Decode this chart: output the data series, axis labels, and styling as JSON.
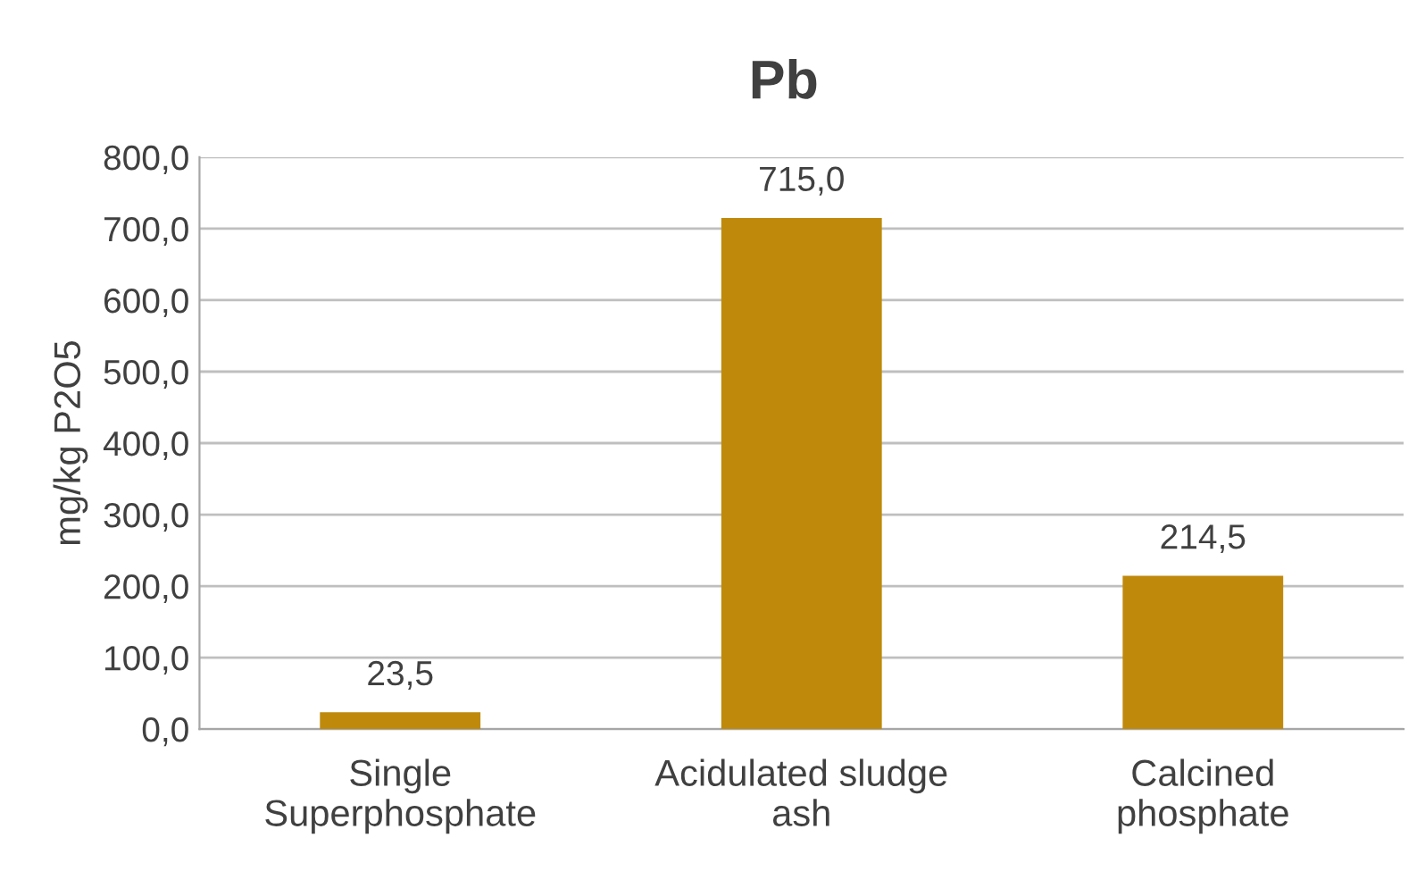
{
  "chart_data": {
    "type": "bar",
    "title": "Pb",
    "ylabel": "mg/kg P2O5",
    "categories": [
      "Single\nSuperphosphate",
      "Acidulated sludge\nash",
      "Calcined\nphosphate"
    ],
    "values": [
      23.5,
      715.0,
      214.5
    ],
    "value_labels": [
      "23,5",
      "715,0",
      "214,5"
    ],
    "color": "#bf8a0c",
    "ylim": [
      0,
      800
    ],
    "yticks": [
      {
        "value": 0,
        "label": "0,0"
      },
      {
        "value": 100,
        "label": "100,0"
      },
      {
        "value": 200,
        "label": "200,0"
      },
      {
        "value": 300,
        "label": "300,0"
      },
      {
        "value": 400,
        "label": "400,0"
      },
      {
        "value": 500,
        "label": "500,0"
      },
      {
        "value": 600,
        "label": "600,0"
      },
      {
        "value": 700,
        "label": "700,0"
      },
      {
        "value": 800,
        "label": "800,0"
      }
    ],
    "grid": "y",
    "legend": false
  }
}
